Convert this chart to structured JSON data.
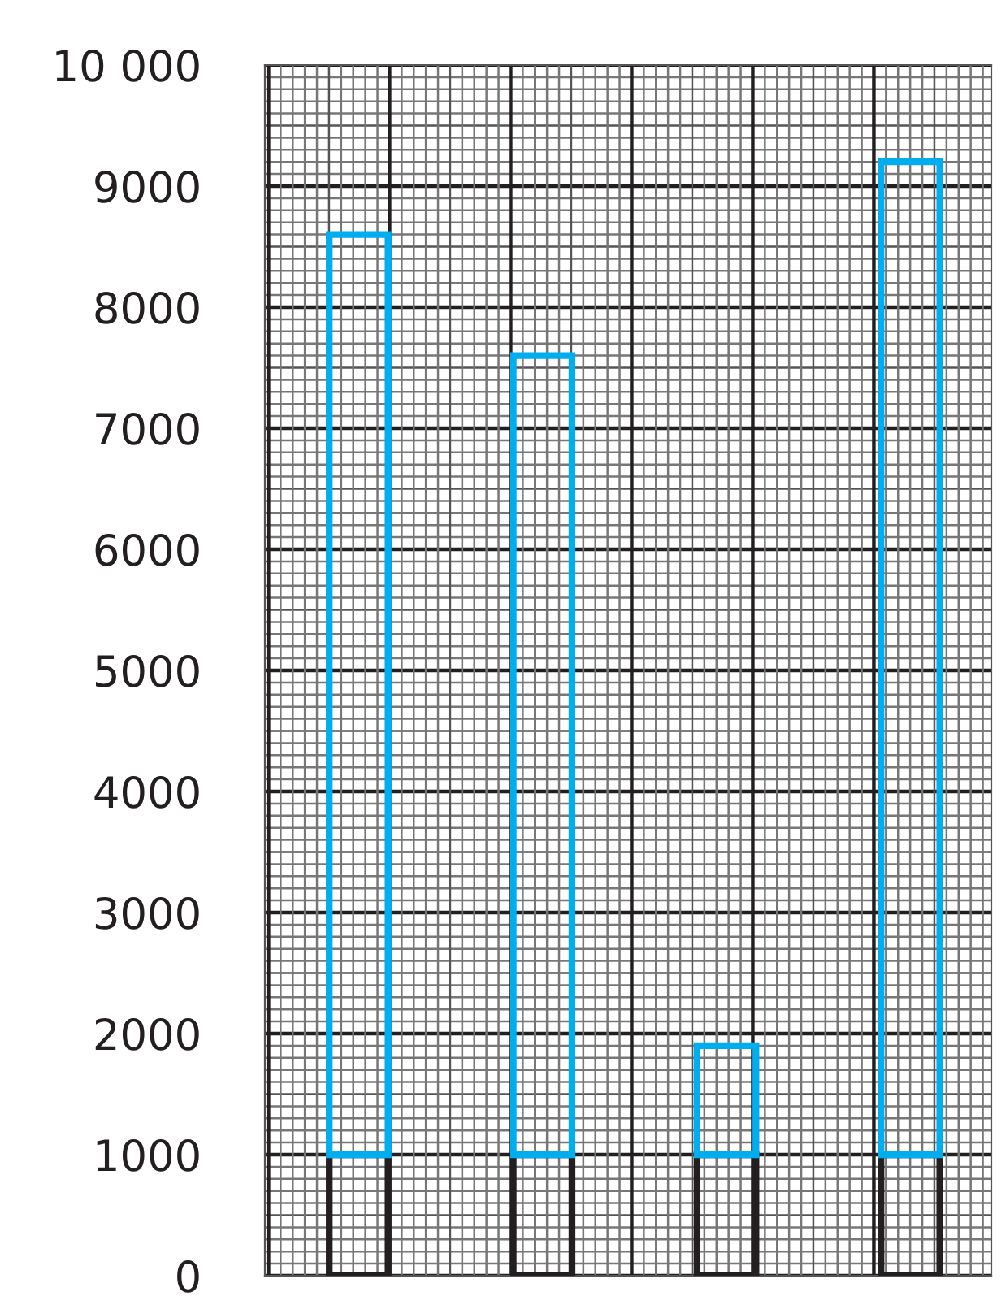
{
  "chart_data": {
    "type": "bar",
    "stacked": true,
    "categories": [
      null,
      null,
      null,
      null
    ],
    "series": [
      {
        "color": "#231f20",
        "values": [
          1000,
          1000,
          1000,
          1000
        ]
      },
      {
        "color": "#00aeef",
        "values": [
          7600,
          6600,
          900,
          8200
        ]
      }
    ],
    "ylim": [
      0,
      10000
    ],
    "yticks": [
      0,
      1000,
      2000,
      3000,
      4000,
      5000,
      6000,
      7000,
      8000,
      9000,
      {
        "value": 10000,
        "label": "10 000"
      }
    ],
    "grid": true,
    "tick_labels": "y"
  }
}
